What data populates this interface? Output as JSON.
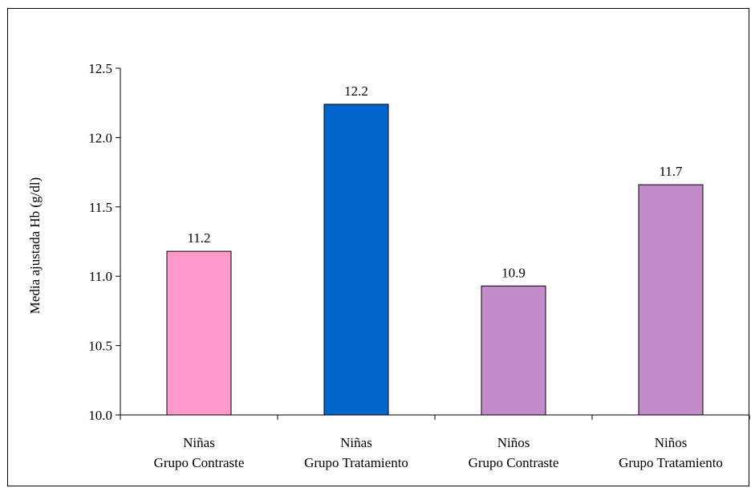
{
  "chart_data": {
    "type": "bar",
    "title": "",
    "xlabel": "",
    "ylabel": "Media ajustada Hb (g/dl)",
    "ylim": [
      10.0,
      12.5
    ],
    "yticks": [
      "10.0",
      "10.5",
      "11.0",
      "11.5",
      "12.0",
      "12.5"
    ],
    "categories": [
      [
        "Niñas",
        "Grupo Contraste"
      ],
      [
        "Niñas",
        "Grupo Tratamiento"
      ],
      [
        "Niños",
        "Grupo Contraste"
      ],
      [
        "Niños",
        "Grupo Tratamiento"
      ]
    ],
    "values": [
      11.18,
      12.24,
      10.93,
      11.66
    ],
    "data_labels": [
      "11.2",
      "12.2",
      "10.9",
      "11.7"
    ],
    "colors": [
      "#FF99CC",
      "#0066CC",
      "#C48BCB",
      "#C48BCB"
    ],
    "grid": false,
    "legend": "none"
  }
}
